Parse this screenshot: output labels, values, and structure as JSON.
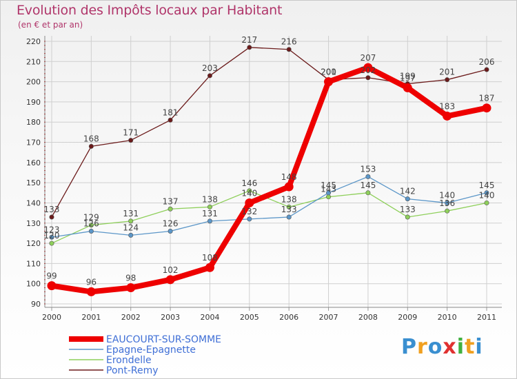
{
  "chart_data": {
    "type": "line",
    "title": "Evolution des Impôts locaux par Habitant",
    "subtitle": "(en € et par an)",
    "categories": [
      "2000",
      "2001",
      "2002",
      "2003",
      "2004",
      "2005",
      "2006",
      "2007",
      "2008",
      "2009",
      "2010",
      "2011"
    ],
    "ylim": [
      90,
      220
    ],
    "yticks": [
      90,
      100,
      110,
      120,
      130,
      140,
      150,
      160,
      170,
      180,
      190,
      200,
      210,
      220
    ],
    "grid": true,
    "series": [
      {
        "name": "EAUCOURT-SUR-SOMME",
        "color": "#ee0000",
        "values": [
          99,
          96,
          98,
          102,
          108,
          140,
          148,
          200,
          207,
          197,
          183,
          187
        ]
      },
      {
        "name": "Epagne-Epagnette",
        "color": "#5b96c8",
        "values": [
          123,
          126,
          124,
          126,
          131,
          132,
          133,
          145,
          153,
          142,
          140,
          145
        ]
      },
      {
        "name": "Erondelle",
        "color": "#8ecf5a",
        "values": [
          120,
          129,
          131,
          137,
          138,
          146,
          138,
          143,
          145,
          133,
          136,
          140
        ]
      },
      {
        "name": "Pont-Remy",
        "color": "#6b1a1a",
        "values": [
          133,
          168,
          171,
          181,
          203,
          217,
          216,
          201,
          202,
          199,
          201,
          206
        ]
      }
    ]
  },
  "brand": {
    "letters": [
      {
        "ch": "P",
        "color": "#3a8fd0"
      },
      {
        "ch": "r",
        "color": "#f0a020"
      },
      {
        "ch": "o",
        "color": "#3a8fd0"
      },
      {
        "ch": "x",
        "color": "#e03030"
      },
      {
        "ch": "i",
        "color": "#40b040"
      },
      {
        "ch": "t",
        "color": "#f0a020"
      },
      {
        "ch": "i",
        "color": "#3a8fd0"
      }
    ]
  }
}
